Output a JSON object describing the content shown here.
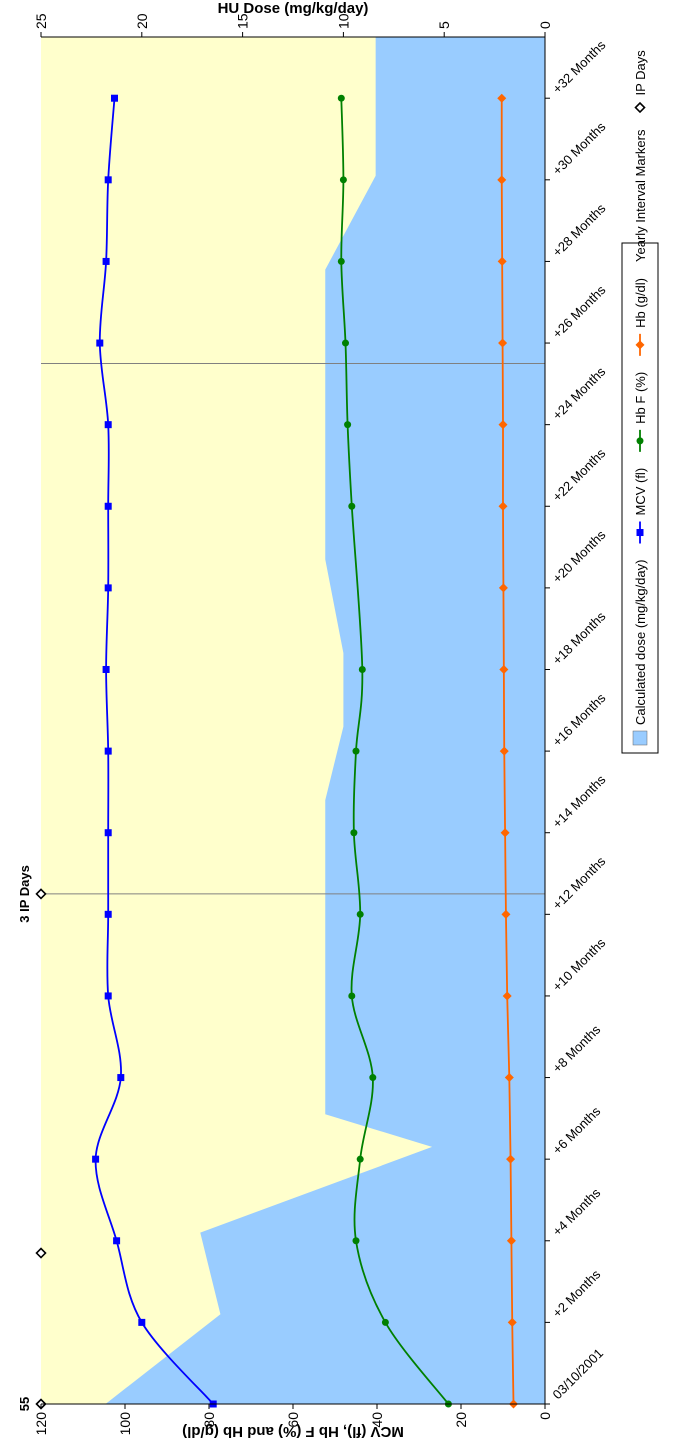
{
  "chart_data": {
    "type": "line",
    "ylabel_left": "MCV (fl), Hb F (%) and Hb (g/dl)",
    "ylabel_right": "HU Dose (mg/kg/day)",
    "y_left_lim": [
      0,
      120
    ],
    "y_left_ticks": [
      "0",
      "20",
      "40",
      "60",
      "80",
      "100",
      "120"
    ],
    "y_right_lim": [
      0,
      25
    ],
    "y_right_ticks": [
      "0",
      "5",
      "10",
      "15",
      "20",
      "25"
    ],
    "x_lim": [
      0,
      33.5
    ],
    "x_ticks": [
      {
        "x": 0,
        "label": "03/10/2001"
      },
      {
        "x": 2,
        "label": "+2 Months"
      },
      {
        "x": 4,
        "label": "+4 Months"
      },
      {
        "x": 6,
        "label": "+6 Months"
      },
      {
        "x": 8,
        "label": "+8 Months"
      },
      {
        "x": 10,
        "label": "+10 Months"
      },
      {
        "x": 12,
        "label": "+12 Months"
      },
      {
        "x": 14,
        "label": "+14 Months"
      },
      {
        "x": 16,
        "label": "+16 Months"
      },
      {
        "x": 18,
        "label": "+18 Months"
      },
      {
        "x": 20,
        "label": "+20 Months"
      },
      {
        "x": 22,
        "label": "+22 Months"
      },
      {
        "x": 24,
        "label": "+24 Months"
      },
      {
        "x": 26,
        "label": "+26 Months"
      },
      {
        "x": 28,
        "label": "+28 Months"
      },
      {
        "x": 30,
        "label": "+30 Months"
      },
      {
        "x": 32,
        "label": "+32 Months"
      }
    ],
    "gridlines": "vertical only, at yearly markers",
    "legend_position": "right",
    "plot_background": "#ffffcc",
    "dose_area": {
      "name": "Calculated dose (mg/kg/day)",
      "color": "#99ccff",
      "x": [
        0,
        2.2,
        4.2,
        6.3,
        7.1,
        8.9,
        10.6,
        14.8,
        16.6,
        18.4,
        20.7,
        22.9,
        25.9,
        27.8,
        30.1,
        32.4,
        33.5
      ],
      "y": [
        21.8,
        16.1,
        17.1,
        5.6,
        10.9,
        10.9,
        10.9,
        10.9,
        10,
        10,
        10.9,
        10.9,
        10.9,
        10.9,
        8.4,
        8.4,
        8.4
      ]
    },
    "series": [
      {
        "name": "MCV (fl)",
        "color": "#0000ff",
        "marker": "square",
        "x": [
          0,
          2.0,
          4.0,
          6.0,
          8.0,
          10.0,
          12.0,
          14.0,
          16.0,
          18.0,
          20.0,
          22.0,
          24.0,
          26.0,
          28.0,
          30.0,
          32.0
        ],
        "y": [
          79,
          96,
          102,
          107,
          101,
          104,
          104,
          104,
          104,
          104.5,
          104,
          104,
          104,
          106,
          104.5,
          104,
          102.5
        ]
      },
      {
        "name": "Hb F (%)",
        "color": "#008000",
        "marker": "circle",
        "x": [
          0,
          2.0,
          4.0,
          6.0,
          8.0,
          10.0,
          12.0,
          14.0,
          16.0,
          18.0,
          22.0,
          24.0,
          26.0,
          28.0,
          30.0,
          32.0
        ],
        "y": [
          23,
          38,
          45,
          44,
          41,
          46,
          44,
          45.5,
          45,
          43.5,
          46,
          47,
          47.5,
          48.5,
          48,
          48.5
        ]
      },
      {
        "name": "Hb (g/dl)",
        "color": "#ff6600",
        "marker": "diamond",
        "x": [
          0,
          2.0,
          4.0,
          6.0,
          8.0,
          10.0,
          12.0,
          14.0,
          16.0,
          18.0,
          20.0,
          22.0,
          24.0,
          26.0,
          28.0,
          30.0,
          32.0
        ],
        "y": [
          7.5,
          7.8,
          8.0,
          8.2,
          8.5,
          9.0,
          9.3,
          9.5,
          9.7,
          9.8,
          9.9,
          10.0,
          10.0,
          10.1,
          10.2,
          10.3,
          10.3
        ]
      }
    ],
    "yearly_markers": {
      "name": "Yearly Interval Markers",
      "x": [
        12.5,
        25.5
      ]
    },
    "ip_days": {
      "name": "IP Days",
      "points": [
        {
          "x": 0,
          "label": "55"
        },
        {
          "x": 3.7,
          "label": ""
        },
        {
          "x": 12.5,
          "label": "3 IP Days"
        }
      ]
    },
    "legend": [
      {
        "label": "Calculated dose (mg/kg/day)",
        "kind": "area",
        "color": "#99ccff"
      },
      {
        "label": "MCV (fl)",
        "kind": "line",
        "marker": "square",
        "color": "#0000ff"
      },
      {
        "label": "Hb F (%)",
        "kind": "line",
        "marker": "circle",
        "color": "#008000"
      },
      {
        "label": "Hb (g/dl)",
        "kind": "line",
        "marker": "diamond",
        "color": "#ff6600"
      },
      {
        "label": "Yearly Interval Markers",
        "kind": "none",
        "color": "#808080"
      },
      {
        "label": "IP Days",
        "kind": "marker",
        "marker": "hollow-diamond",
        "color": "#000000"
      }
    ]
  }
}
